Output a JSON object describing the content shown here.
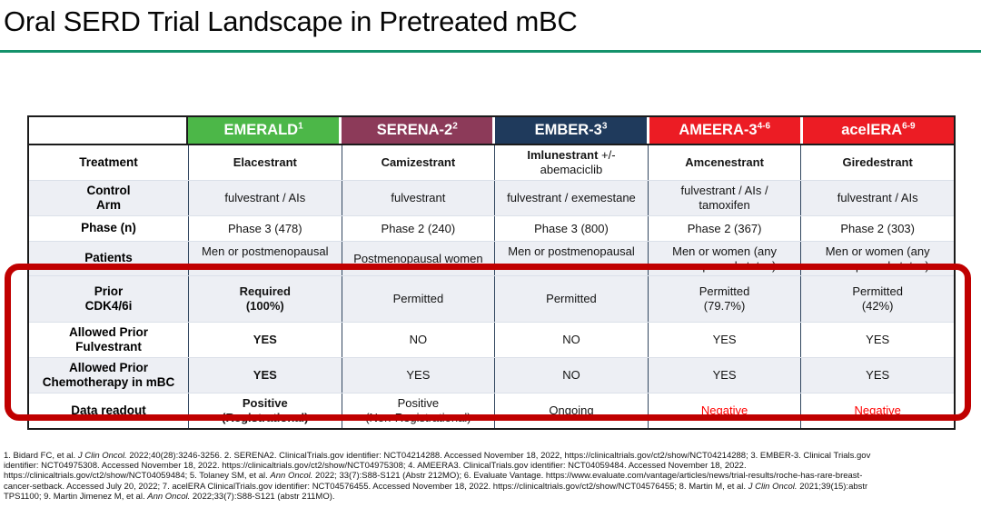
{
  "title": "Oral SERD Trial Landscape in Pretreated mBC",
  "colors": {
    "title_underline": "#14926B",
    "highlight_box": "#C00000",
    "row_shade": "#EDEFF4",
    "negative": "#FF0000",
    "header_text": "#FFFFFF"
  },
  "table": {
    "columns": [
      {
        "name": "EMERALD",
        "sup": "1",
        "color": "#4CB748"
      },
      {
        "name": "SERENA-2",
        "sup": "2",
        "color": "#8C3A59"
      },
      {
        "name": "EMBER-3",
        "sup": "3",
        "color": "#1F3A5C"
      },
      {
        "name": "AMEERA-3",
        "sup": "4-6",
        "color": "#EC1C24"
      },
      {
        "name": "acelERA",
        "sup": "6-9",
        "color": "#EC1C24"
      }
    ],
    "rows": [
      {
        "label": "Treatment",
        "shaded": false,
        "cells": [
          {
            "text": "Elacestrant",
            "bold": true
          },
          {
            "text": "Camizestrant",
            "bold": true
          },
          {
            "segments": [
              {
                "text": "Imlunestrant",
                "bold": true
              },
              {
                "text": " +/-\nabemaciclib",
                "bold": false
              }
            ]
          },
          {
            "text": "Amcenestrant",
            "bold": true
          },
          {
            "text": "Giredestrant",
            "bold": true
          }
        ]
      },
      {
        "label": "Control\nArm",
        "shaded": true,
        "cells": [
          {
            "text": "fulvestrant / AIs"
          },
          {
            "text": "fulvestrant"
          },
          {
            "text": "fulvestrant / exemestane"
          },
          {
            "text": "fulvestrant / AIs /\ntamoxifen"
          },
          {
            "text": "fulvestrant / AIs"
          }
        ]
      },
      {
        "label": "Phase (n)",
        "shaded": false,
        "cells": [
          {
            "text": "Phase 3 (478)"
          },
          {
            "text": "Phase 2 (240)"
          },
          {
            "text": "Phase 3 (800)"
          },
          {
            "text": "Phase 2 (367)"
          },
          {
            "text": "Phase 2 (303)"
          }
        ]
      },
      {
        "label": "Patients",
        "shaded": true,
        "cells": [
          {
            "text": "Men or postmenopausal\nwomen"
          },
          {
            "text": "Postmenopausal women"
          },
          {
            "text": "Men or postmenopausal\nwomen"
          },
          {
            "text": "Men or women (any\nmenopausal status)"
          },
          {
            "text": "Men or women (any\nmenopausal status)"
          }
        ]
      },
      {
        "label": "Prior\nCDK4/6i",
        "shaded": true,
        "cells": [
          {
            "text": "Required\n(100%)",
            "bold": true
          },
          {
            "text": "Permitted"
          },
          {
            "text": "Permitted"
          },
          {
            "text": "Permitted\n(79.7%)"
          },
          {
            "text": "Permitted\n(42%)"
          }
        ]
      },
      {
        "label": "Allowed Prior\nFulvestrant",
        "shaded": false,
        "cells": [
          {
            "text": "YES",
            "bold": true
          },
          {
            "text": "NO"
          },
          {
            "text": "NO"
          },
          {
            "text": "YES"
          },
          {
            "text": "YES"
          }
        ]
      },
      {
        "label": "Allowed Prior\nChemotherapy in mBC",
        "shaded": true,
        "cells": [
          {
            "text": "YES",
            "bold": true
          },
          {
            "text": "YES"
          },
          {
            "text": "NO"
          },
          {
            "text": "YES"
          },
          {
            "text": "YES"
          }
        ]
      },
      {
        "label": "Data readout",
        "shaded": false,
        "cells": [
          {
            "text": "Positive\n(Registrational)",
            "bold": true
          },
          {
            "text": "Positive\n(Non-Registrational)"
          },
          {
            "text": "Ongoing"
          },
          {
            "text": "Negative",
            "color": "#FF0000"
          },
          {
            "text": "Negative",
            "color": "#FF0000"
          }
        ]
      }
    ]
  },
  "footnotes": [
    [
      {
        "text": "1. Bidard FC, et al. "
      },
      {
        "text": "J Clin Oncol.",
        "italic": true
      },
      {
        "text": " 2022;40(28):3246-3256. 2. SERENA2. ClinicalTrials.gov identifier: NCT04214288. Accessed November 18, 2022, https://clinicaltrials.gov/ct2/show/NCT04214288; 3. EMBER-3. Clinical Trials.gov"
      }
    ],
    [
      {
        "text": "identifier: NCT04975308. Accessed November 18, 2022. https://clinicaltrials.gov/ct2/show/NCT04975308; 4. AMEERA3. ClinicalTrials.gov identifier: NCT04059484. Accessed November 18, 2022."
      }
    ],
    [
      {
        "text": "https://clinicaltrials.gov/ct2/show/NCT04059484; 5. Tolaney SM, et al. "
      },
      {
        "text": "Ann Oncol.",
        "italic": true
      },
      {
        "text": " 2022; 33(7):S88-S121 (Abstr 212MO); 6. Evaluate Vantage. https://www.evaluate.com/vantage/articles/news/trial-results/roche-has-rare-breast-"
      }
    ],
    [
      {
        "text": "cancer-setback. Accessed July 20, 2022; 7. acelERA ClinicalTrials.gov identifier: NCT04576455. Accessed November 18, 2022. https://clinicaltrials.gov/ct2/show/NCT04576455; 8. Martin M, et al. "
      },
      {
        "text": "J Clin Oncol.",
        "italic": true
      },
      {
        "text": " 2021;39(15):abstr"
      }
    ],
    [
      {
        "text": "TPS1100; 9. Martin Jimenez M, et al. "
      },
      {
        "text": "Ann Oncol.",
        "italic": true
      },
      {
        "text": " 2022;33(7):S88-S121 (abstr 211MO)."
      }
    ]
  ]
}
